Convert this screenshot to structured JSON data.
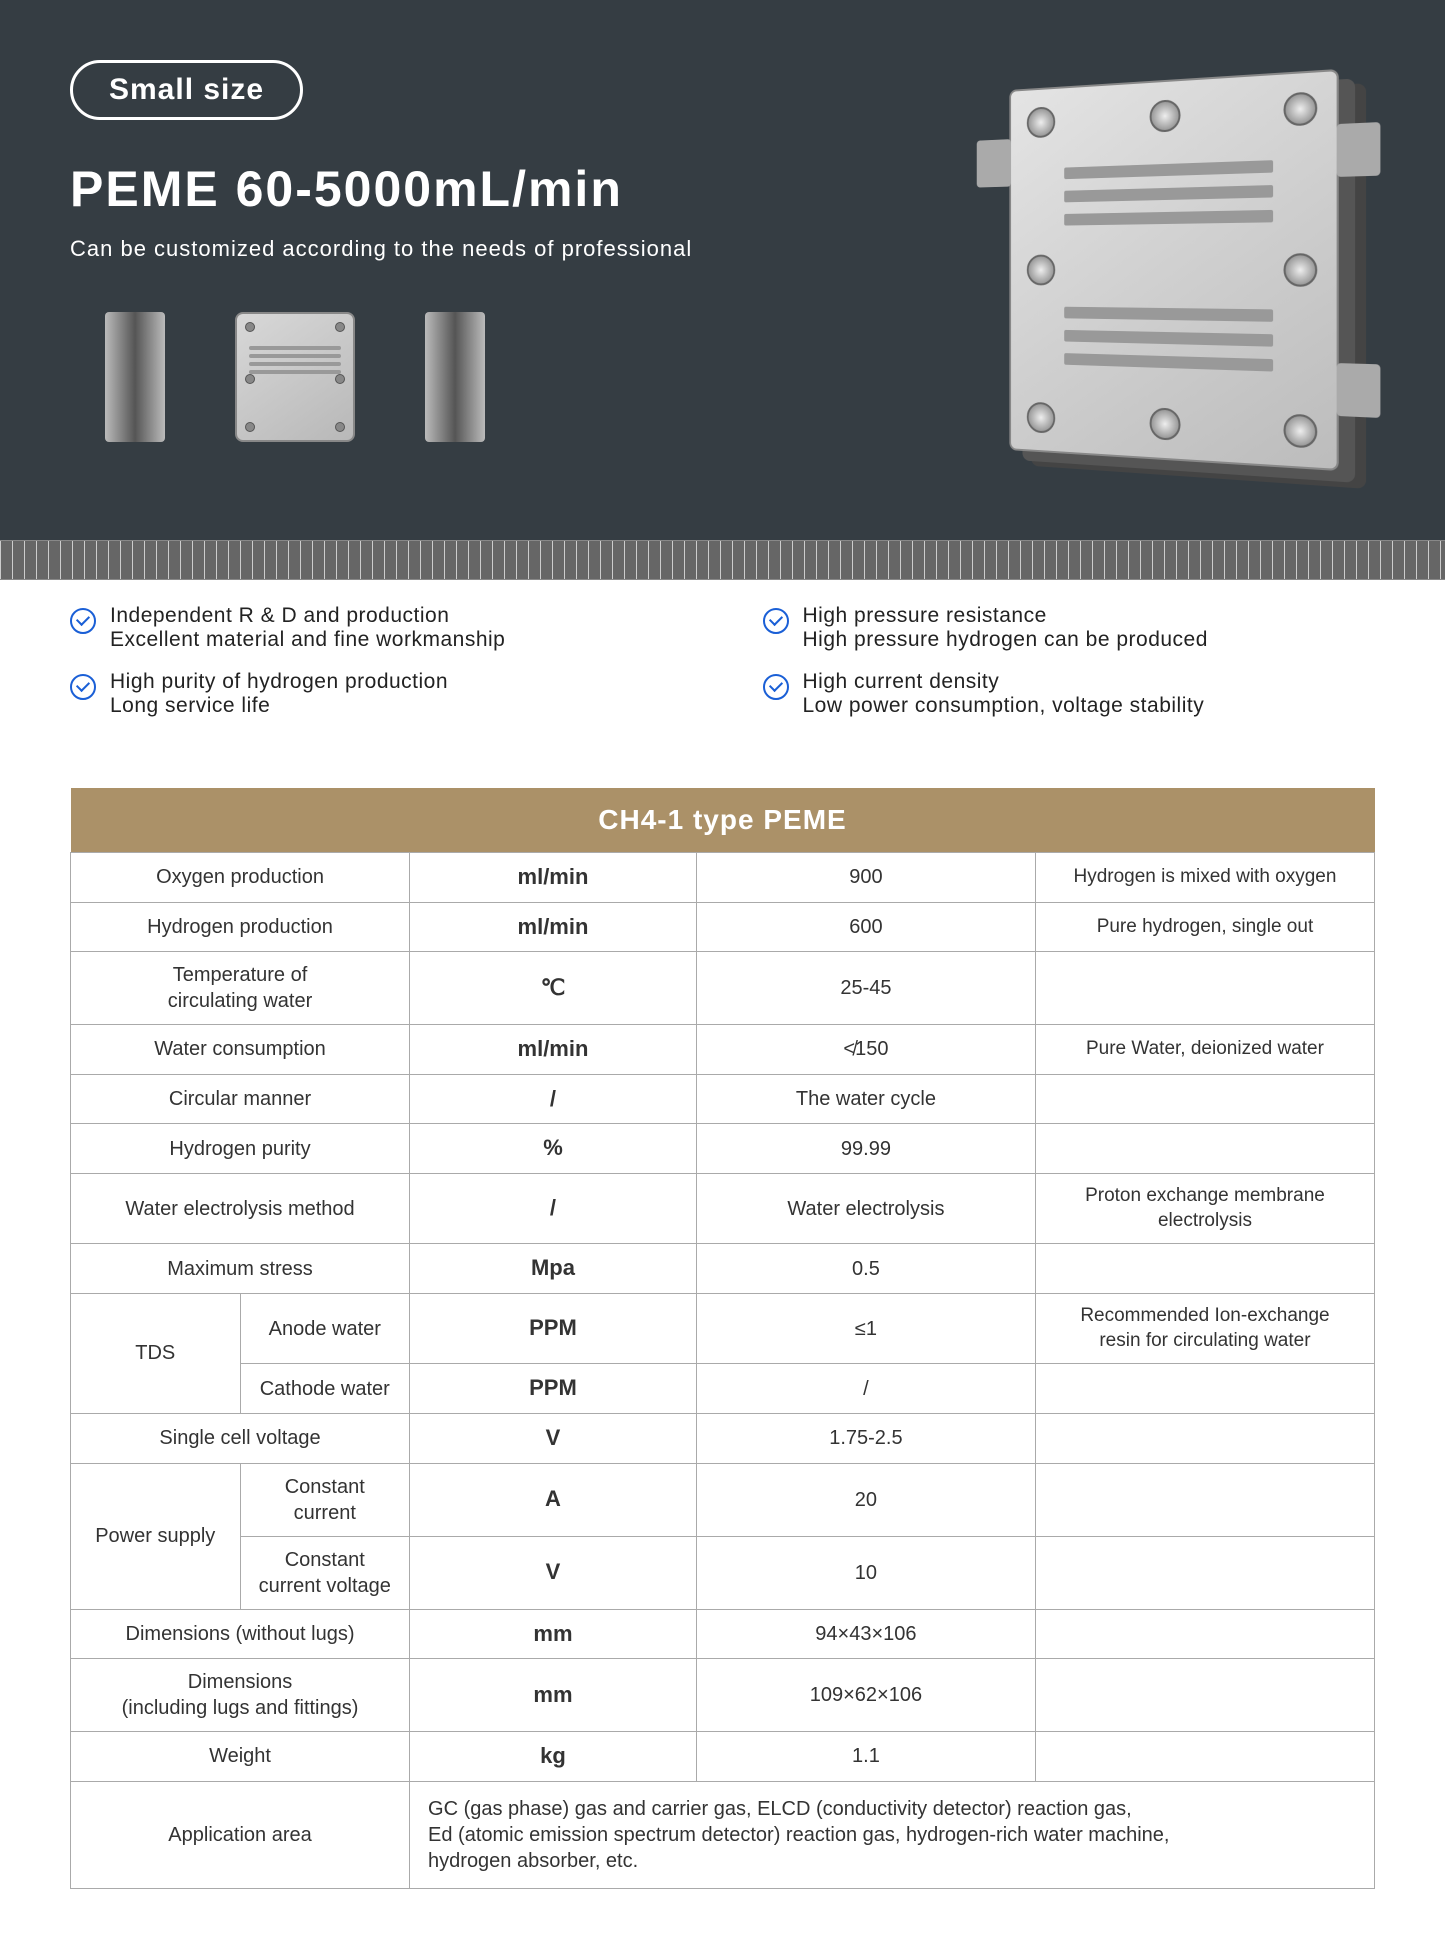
{
  "hero": {
    "badge": "Small size",
    "title": "PEME 60-5000mL/min",
    "subtitle": "Can be customized according to the needs of professional"
  },
  "features": [
    {
      "line1": "Independent R & D and production",
      "line2": "Excellent material and fine workmanship"
    },
    {
      "line1": "High pressure resistance",
      "line2": "High pressure hydrogen can be produced"
    },
    {
      "line1": "High purity of hydrogen production",
      "line2": "Long service life"
    },
    {
      "line1": "High current density",
      "line2": "Low power consumption, voltage stability"
    }
  ],
  "table": {
    "header": "CH4-1 type PEME",
    "colors": {
      "header_bg": "#ab9168",
      "header_fg": "#ffffff",
      "border": "#aaaaaa"
    },
    "rows": [
      {
        "label": "Oxygen production",
        "unit": "ml/min",
        "value": "900",
        "note": "Hydrogen is mixed with oxygen"
      },
      {
        "label": "Hydrogen production",
        "unit": "ml/min",
        "value": "600",
        "note": "Pure hydrogen, single out"
      },
      {
        "label": "Temperature of\ncirculating water",
        "unit": "℃",
        "value": "25-45",
        "note": ""
      },
      {
        "label": "Water consumption",
        "unit": "ml/min",
        "value": "≮150",
        "note": "Pure Water, deionized water"
      },
      {
        "label": "Circular manner",
        "unit": "/",
        "value": "The water cycle",
        "note": ""
      },
      {
        "label": "Hydrogen purity",
        "unit": "%",
        "value": "99.99",
        "note": ""
      },
      {
        "label": "Water electrolysis method",
        "unit": "/",
        "value": "Water electrolysis",
        "note": "Proton exchange membrane\nelectrolysis"
      },
      {
        "label": "Maximum stress",
        "unit": "Mpa",
        "value": "0.5",
        "note": ""
      }
    ],
    "tds": {
      "group": "TDS",
      "anode": {
        "label": "Anode water",
        "unit": "PPM",
        "value": "≤1",
        "note": "Recommended Ion-exchange\nresin for circulating water"
      },
      "cathode": {
        "label": "Cathode water",
        "unit": "PPM",
        "value": "/",
        "note": ""
      }
    },
    "after_tds": [
      {
        "label": "Single cell voltage",
        "unit": "V",
        "value": "1.75-2.5",
        "note": ""
      }
    ],
    "power": {
      "group": "Power supply",
      "cc": {
        "label": "Constant\ncurrent",
        "unit": "A",
        "value": "20",
        "note": ""
      },
      "cv": {
        "label": "Constant\ncurrent voltage",
        "unit": "V",
        "value": "10",
        "note": ""
      }
    },
    "tail": [
      {
        "label": "Dimensions  (without lugs)",
        "unit": "mm",
        "value": "94×43×106",
        "note": ""
      },
      {
        "label": "Dimensions\n(including lugs and fittings)",
        "unit": "mm",
        "value": "109×62×106",
        "note": ""
      },
      {
        "label": "Weight",
        "unit": "kg",
        "value": "1.1",
        "note": ""
      }
    ],
    "application": {
      "label": "Application area",
      "text": "GC (gas phase) gas and carrier gas, ELCD (conductivity detector) reaction gas,\nEd (atomic emission spectrum detector) reaction gas, hydrogen-rich water machine,\nhydrogen absorber, etc."
    }
  }
}
